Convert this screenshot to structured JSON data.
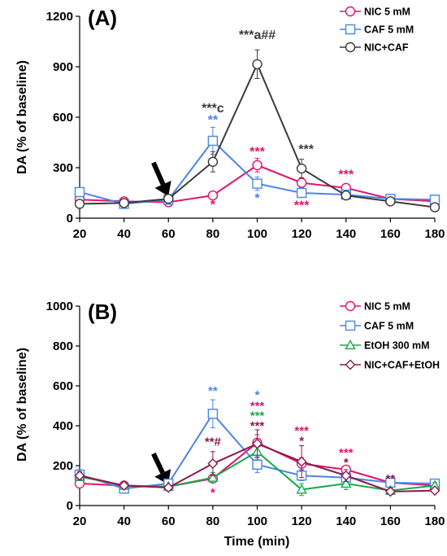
{
  "colors": {
    "nic": "#e2136c",
    "caf": "#4a86e8",
    "etoh": "#1aa84b",
    "nic_caf": "#3b3b3b",
    "nic_caf_etoh": "#8b1a4f",
    "axis": "#000000"
  },
  "chart_data": [
    {
      "type": "line",
      "panel_label": "(A)",
      "xlabel": "",
      "ylabel": "DA (% of baseline)",
      "xlim": [
        20,
        180
      ],
      "ylim": [
        0,
        1200
      ],
      "xticks": [
        "20",
        "40",
        "60",
        "80",
        "100",
        "120",
        "140",
        "160",
        "180"
      ],
      "yticks": [
        "0",
        "300",
        "600",
        "900",
        "1200"
      ],
      "legend_position": "top-right",
      "series": [
        {
          "name": "NIC 5 mM",
          "marker": "circle",
          "color_key": "nic",
          "x": [
            20,
            40,
            60,
            80,
            100,
            120,
            140,
            160,
            180
          ],
          "y": [
            110,
            100,
            95,
            135,
            315,
            210,
            180,
            115,
            100
          ],
          "err": [
            20,
            15,
            10,
            15,
            40,
            30,
            20,
            15,
            12
          ]
        },
        {
          "name": "CAF 5 mM",
          "marker": "square",
          "color_key": "caf",
          "x": [
            20,
            40,
            60,
            80,
            100,
            120,
            140,
            160,
            180
          ],
          "y": [
            155,
            85,
            110,
            460,
            205,
            150,
            140,
            115,
            110
          ],
          "err": [
            25,
            15,
            12,
            80,
            40,
            25,
            20,
            15,
            15
          ]
        },
        {
          "name": "NIC+CAF",
          "marker": "circle",
          "color_key": "nic_caf",
          "x": [
            20,
            40,
            60,
            80,
            100,
            120,
            140,
            160,
            180
          ],
          "y": [
            85,
            90,
            115,
            335,
            915,
            295,
            135,
            100,
            65
          ],
          "err": [
            15,
            15,
            12,
            60,
            85,
            55,
            20,
            15,
            10
          ]
        }
      ],
      "annotations": [
        {
          "text": "**",
          "x": 80,
          "y": 560,
          "color_key": "caf",
          "size": 16
        },
        {
          "text": "***c",
          "x": 80,
          "y": 630,
          "color_key": "nic_caf",
          "size": 16
        },
        {
          "text": "*",
          "x": 80,
          "y": 55,
          "color_key": "nic",
          "size": 16
        },
        {
          "text": "***a##",
          "x": 100,
          "y": 1065,
          "color_key": "nic_caf",
          "size": 16
        },
        {
          "text": "***",
          "x": 100,
          "y": 370,
          "color_key": "nic",
          "size": 16
        },
        {
          "text": "*",
          "x": 100,
          "y": 95,
          "color_key": "caf",
          "size": 16
        },
        {
          "text": "***",
          "x": 122,
          "y": 385,
          "color_key": "nic_caf",
          "size": 16
        },
        {
          "text": "***",
          "x": 120,
          "y": 50,
          "color_key": "nic",
          "size": 16
        },
        {
          "text": "***",
          "x": 140,
          "y": 235,
          "color_key": "nic",
          "size": 16
        }
      ],
      "arrow": {
        "x": 57,
        "y_tip": 130,
        "y_tail": 330
      }
    },
    {
      "type": "line",
      "panel_label": "(B)",
      "xlabel": "Time (min)",
      "ylabel": "DA (% of baseline)",
      "xlim": [
        20,
        180
      ],
      "ylim": [
        0,
        1000
      ],
      "xticks": [
        "20",
        "40",
        "60",
        "80",
        "100",
        "120",
        "140",
        "160",
        "180"
      ],
      "yticks": [
        "0",
        "200",
        "400",
        "600",
        "800",
        "1000"
      ],
      "legend_position": "top-right",
      "series": [
        {
          "name": "NIC 5 mM",
          "marker": "circle",
          "color_key": "nic",
          "x": [
            20,
            40,
            60,
            80,
            100,
            120,
            140,
            160,
            180
          ],
          "y": [
            110,
            100,
            95,
            135,
            315,
            210,
            180,
            115,
            100
          ],
          "err": [
            20,
            15,
            10,
            15,
            40,
            30,
            20,
            15,
            12
          ]
        },
        {
          "name": "CAF 5 mM",
          "marker": "square",
          "color_key": "caf",
          "x": [
            20,
            40,
            60,
            80,
            100,
            120,
            140,
            160,
            180
          ],
          "y": [
            155,
            85,
            110,
            460,
            205,
            150,
            140,
            115,
            110
          ],
          "err": [
            25,
            15,
            12,
            70,
            40,
            25,
            20,
            15,
            15
          ]
        },
        {
          "name": "EtOH 300 mM",
          "marker": "triangle",
          "color_key": "etoh",
          "x": [
            20,
            40,
            60,
            80,
            100,
            120,
            140,
            160,
            180
          ],
          "y": [
            145,
            100,
            95,
            140,
            270,
            80,
            110,
            75,
            100
          ],
          "err": [
            20,
            15,
            10,
            25,
            40,
            30,
            30,
            15,
            15
          ]
        },
        {
          "name": "NIC+CAF+EtOH",
          "marker": "diamond",
          "color_key": "nic_caf_etoh",
          "x": [
            20,
            40,
            60,
            80,
            100,
            120,
            140,
            160,
            180
          ],
          "y": [
            150,
            100,
            90,
            210,
            310,
            220,
            150,
            70,
            75
          ],
          "err": [
            20,
            15,
            10,
            60,
            70,
            80,
            30,
            15,
            10
          ]
        }
      ],
      "annotations": [
        {
          "text": "**",
          "x": 80,
          "y": 555,
          "color_key": "caf",
          "size": 15
        },
        {
          "text": "**#",
          "x": 80,
          "y": 300,
          "color_key": "nic_caf_etoh",
          "size": 15
        },
        {
          "text": "*",
          "x": 80,
          "y": 45,
          "color_key": "nic",
          "size": 15
        },
        {
          "text": "*",
          "x": 100,
          "y": 535,
          "color_key": "caf",
          "size": 15
        },
        {
          "text": "***",
          "x": 100,
          "y": 480,
          "color_key": "nic",
          "size": 15
        },
        {
          "text": "***",
          "x": 100,
          "y": 430,
          "color_key": "etoh",
          "size": 15
        },
        {
          "text": "***",
          "x": 100,
          "y": 380,
          "color_key": "nic_caf_etoh",
          "size": 15
        },
        {
          "text": "***",
          "x": 120,
          "y": 355,
          "color_key": "nic",
          "size": 15
        },
        {
          "text": "*",
          "x": 120,
          "y": 305,
          "color_key": "nic_caf_etoh",
          "size": 15
        },
        {
          "text": "***",
          "x": 140,
          "y": 245,
          "color_key": "nic",
          "size": 15
        },
        {
          "text": "*",
          "x": 140,
          "y": 195,
          "color_key": "nic_caf_etoh",
          "size": 15
        },
        {
          "text": "**",
          "x": 160,
          "y": 115,
          "color_key": "nic_caf_etoh",
          "size": 15
        }
      ],
      "arrow": {
        "x": 57,
        "y_tip": 105,
        "y_tail": 260
      }
    }
  ]
}
